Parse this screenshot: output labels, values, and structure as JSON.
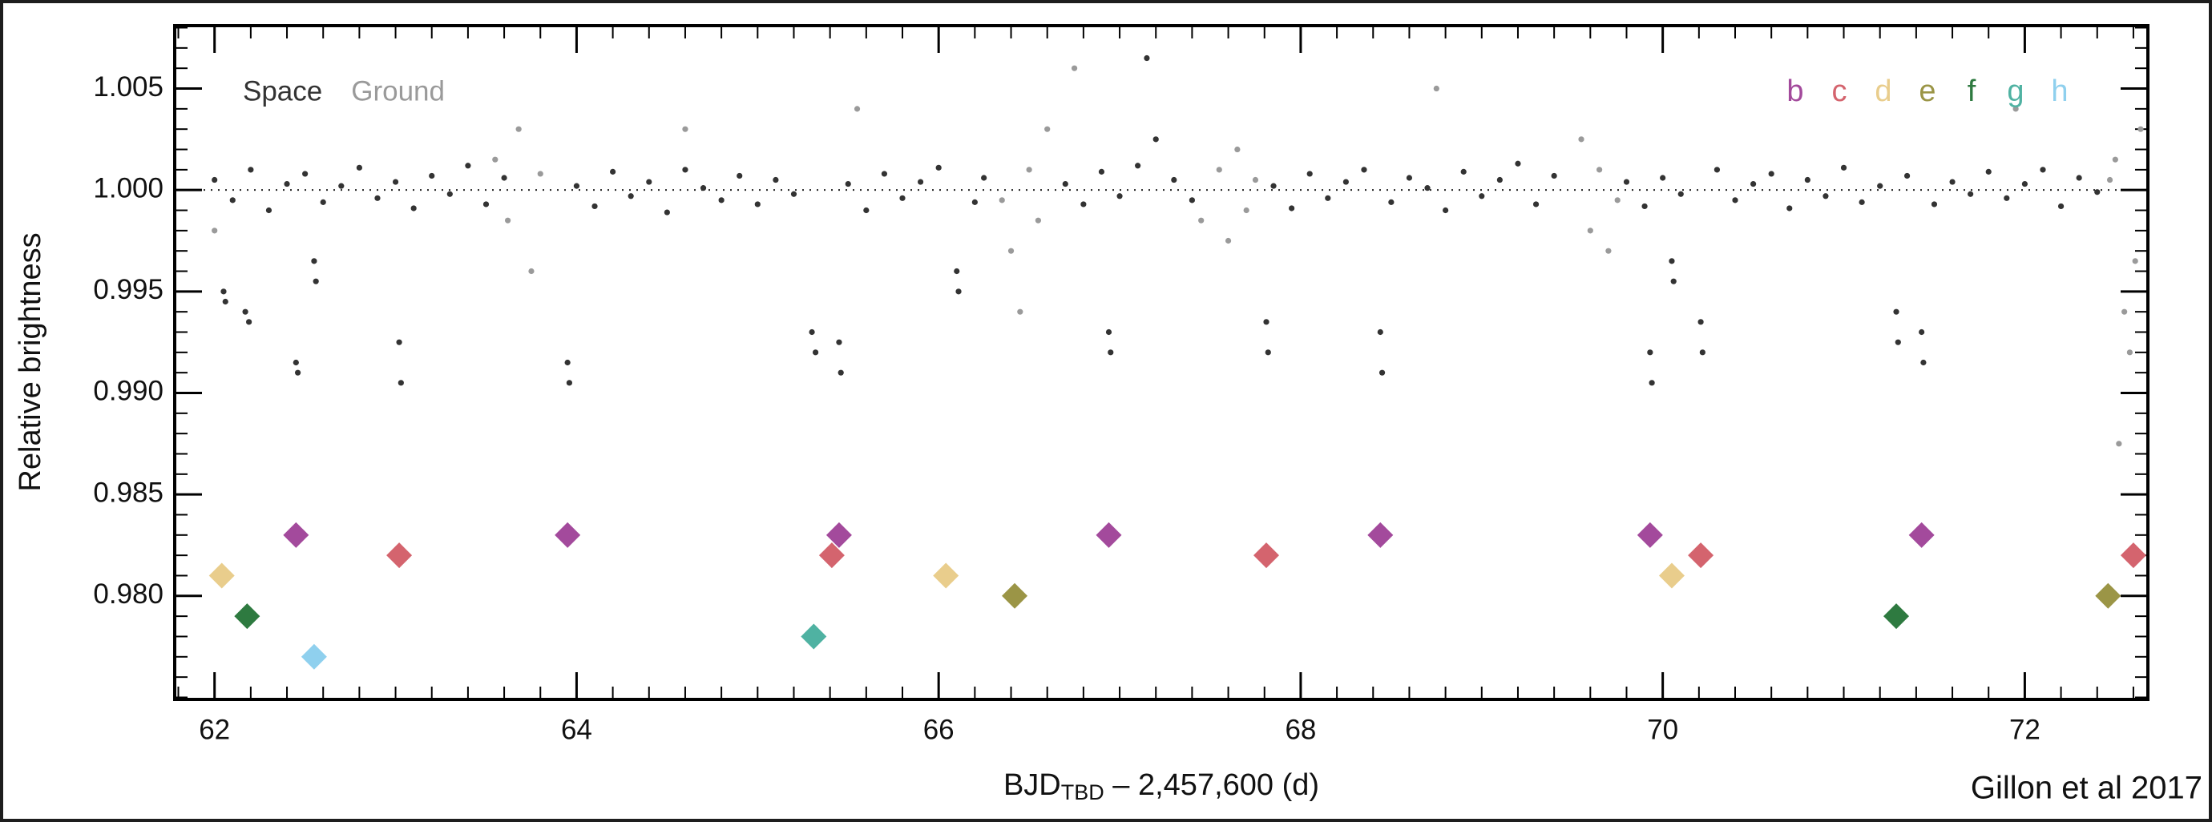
{
  "chart_data": {
    "type": "scatter",
    "y_label": "Relative brightness",
    "x_label": {
      "main": "BJD",
      "sub": "TBD",
      "rest": " – 2,457,600 (d)"
    },
    "credit": "Gillon et al 2017",
    "xlim": [
      61.78,
      72.68
    ],
    "ylim": [
      0.9749,
      1.0081
    ],
    "xticks": [
      62,
      64,
      66,
      68,
      70,
      72
    ],
    "yticks": [
      {
        "value": 0.98,
        "label": "0.980"
      },
      0.985,
      {
        "value": 0.99,
        "label": "0.990"
      },
      0.995,
      {
        "value": 1,
        "label": "1.000"
      },
      1.005
    ],
    "reference_line": 1,
    "series": [
      {
        "name": "Space",
        "color": "#333333",
        "marker": "dot",
        "x": [
          62.0,
          62.1,
          62.2,
          62.3,
          62.4,
          62.5,
          62.6,
          62.7,
          62.8,
          62.9,
          63.0,
          63.1,
          63.2,
          63.3,
          63.4,
          63.5,
          63.6,
          64.0,
          64.1,
          64.2,
          64.3,
          64.4,
          64.5,
          64.6,
          64.7,
          64.8,
          64.9,
          65.0,
          65.1,
          65.2,
          65.5,
          65.6,
          65.7,
          65.8,
          65.9,
          66.0,
          66.2,
          66.25,
          66.7,
          66.8,
          66.9,
          67.0,
          67.1,
          67.15,
          67.2,
          67.3,
          67.4,
          67.85,
          67.95,
          68.05,
          68.15,
          68.25,
          68.35,
          68.5,
          68.6,
          68.7,
          68.8,
          68.9,
          69.0,
          69.1,
          69.2,
          69.3,
          69.4,
          69.8,
          69.9,
          70.0,
          70.1,
          70.3,
          70.4,
          70.5,
          70.6,
          70.7,
          70.8,
          70.9,
          71.0,
          71.1,
          71.2,
          71.35,
          71.5,
          71.6,
          71.7,
          71.8,
          71.9,
          72.0,
          72.1,
          72.2,
          72.3,
          72.4,
          62.05,
          62.06,
          62.17,
          62.19,
          62.45,
          62.46,
          62.55,
          62.56,
          63.02,
          63.03,
          63.95,
          63.96,
          65.3,
          65.32,
          65.45,
          65.46,
          66.1,
          66.11,
          66.94,
          66.95,
          67.81,
          67.82,
          68.44,
          68.45,
          69.93,
          69.94,
          70.05,
          70.06,
          70.21,
          70.22,
          71.29,
          71.3,
          71.43,
          71.44
        ],
        "values": [
          1.0005,
          0.9995,
          1.001,
          0.999,
          1.0003,
          1.0008,
          0.9994,
          1.0002,
          1.0011,
          0.9996,
          1.0004,
          0.9991,
          1.0007,
          0.9998,
          1.0012,
          0.9993,
          1.0006,
          1.0002,
          0.9992,
          1.0009,
          0.9997,
          1.0004,
          0.9989,
          1.001,
          1.0001,
          0.9995,
          1.0007,
          0.9993,
          1.0005,
          0.9998,
          1.0003,
          0.999,
          1.0008,
          0.9996,
          1.0004,
          1.0011,
          0.9994,
          1.0006,
          1.0003,
          0.9993,
          1.0009,
          0.9997,
          1.0012,
          1.0065,
          1.0025,
          1.0005,
          0.9995,
          1.0002,
          0.9991,
          1.0008,
          0.9996,
          1.0004,
          1.001,
          0.9994,
          1.0006,
          1.0001,
          0.999,
          1.0009,
          0.9997,
          1.0005,
          1.0013,
          0.9993,
          1.0007,
          1.0004,
          0.9992,
          1.0006,
          0.9998,
          1.001,
          0.9995,
          1.0003,
          1.0008,
          0.9991,
          1.0005,
          0.9997,
          1.0011,
          0.9994,
          1.0002,
          1.0007,
          0.9993,
          1.0004,
          0.9998,
          1.0009,
          0.9996,
          1.0003,
          1.001,
          0.9992,
          1.0006,
          0.9999,
          0.995,
          0.9945,
          0.994,
          0.9935,
          0.9915,
          0.991,
          0.9965,
          0.9955,
          0.9925,
          0.9905,
          0.9915,
          0.9905,
          0.993,
          0.992,
          0.9925,
          0.991,
          0.996,
          0.995,
          0.993,
          0.992,
          0.9935,
          0.992,
          0.993,
          0.991,
          0.992,
          0.9905,
          0.9965,
          0.9955,
          0.9935,
          0.992,
          0.994,
          0.9925,
          0.993,
          0.9915
        ]
      },
      {
        "name": "Ground",
        "color": "#9a9a9a",
        "marker": "dot",
        "x": [
          62.0,
          63.55,
          63.62,
          63.68,
          63.75,
          63.8,
          64.6,
          65.55,
          66.35,
          66.4,
          66.45,
          66.5,
          66.55,
          66.6,
          66.75,
          67.45,
          67.55,
          67.6,
          67.65,
          67.7,
          67.75,
          68.75,
          69.55,
          69.6,
          69.65,
          69.7,
          69.75,
          71.95,
          72.47,
          72.5,
          72.52,
          72.55,
          72.58,
          72.61,
          72.64
        ],
        "values": [
          0.998,
          1.0015,
          0.9985,
          1.003,
          0.996,
          1.0008,
          1.003,
          1.004,
          0.9995,
          0.997,
          0.994,
          1.001,
          0.9985,
          1.003,
          1.006,
          0.9985,
          1.001,
          0.9975,
          1.002,
          0.999,
          1.0005,
          1.005,
          1.0025,
          0.998,
          1.001,
          0.997,
          0.9995,
          1.004,
          1.0005,
          1.0015,
          0.9875,
          0.994,
          0.992,
          0.9965,
          1.003
        ]
      },
      {
        "name": "b",
        "color": "#a34a9c",
        "marker": "diamond",
        "x": [
          62.45,
          63.95,
          65.45,
          66.94,
          68.44,
          69.93,
          71.43
        ],
        "values": [
          0.983,
          0.983,
          0.983,
          0.983,
          0.983,
          0.983,
          0.983
        ]
      },
      {
        "name": "c",
        "color": "#d4646e",
        "marker": "diamond",
        "x": [
          63.02,
          65.41,
          67.81,
          70.21,
          72.6
        ],
        "values": [
          0.982,
          0.982,
          0.982,
          0.982,
          0.982
        ]
      },
      {
        "name": "d",
        "color": "#e9cd8c",
        "marker": "diamond",
        "x": [
          62.04,
          66.04,
          70.05
        ],
        "values": [
          0.981,
          0.981,
          0.981
        ]
      },
      {
        "name": "e",
        "color": "#9b9546",
        "marker": "diamond",
        "x": [
          66.42,
          72.46
        ],
        "values": [
          0.98,
          0.98
        ]
      },
      {
        "name": "f",
        "color": "#2e7a40",
        "marker": "diamond",
        "x": [
          62.18,
          71.29
        ],
        "values": [
          0.979,
          0.979
        ]
      },
      {
        "name": "g",
        "color": "#4fb2a2",
        "marker": "diamond",
        "x": [
          65.31
        ],
        "values": [
          0.978
        ]
      },
      {
        "name": "h",
        "color": "#8fd0ee",
        "marker": "diamond",
        "x": [
          62.55
        ],
        "values": [
          0.977
        ]
      }
    ]
  }
}
